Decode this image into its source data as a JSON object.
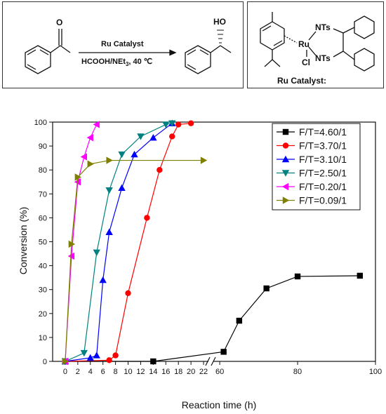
{
  "scheme": {
    "reagent_above": "Ru Catalyst",
    "reagent_below_prefix": "HCOOH/NEt",
    "reagent_below_sub": "3",
    "reagent_below_suffix": ", 40 ℃",
    "reactant_label": "O",
    "product_label": "HO",
    "catalyst_caption": "Ru Catalyst:",
    "catalyst_atoms": {
      "metal": "Ru",
      "ligand_1": "NTs",
      "ligand_2": "NTs",
      "halide": "Cl"
    }
  },
  "chart_data": {
    "type": "line",
    "xlabel": "Reaction time (h)",
    "ylabel": "Conversion (%)",
    "ylim": [
      0,
      100
    ],
    "yticks": [
      0,
      10,
      20,
      30,
      40,
      50,
      60,
      70,
      80,
      90,
      100
    ],
    "x_axis_break": {
      "segment_1": [
        -2,
        23
      ],
      "segment_2": [
        58,
        100
      ]
    },
    "xticks_segment_1": [
      0,
      2,
      4,
      6,
      8,
      10,
      12,
      14,
      16,
      18,
      20,
      22
    ],
    "xticks_segment_2": [
      60,
      80,
      100
    ],
    "grid": false,
    "legend_position": "top-right",
    "series": [
      {
        "name": "F/T=4.60/1",
        "color": "#000000",
        "marker": "square",
        "x": [
          0,
          14,
          61,
          65,
          72,
          80,
          96
        ],
        "y": [
          0,
          0,
          4,
          17,
          30.5,
          35.5,
          35.8
        ]
      },
      {
        "name": "F/T=3.70/1",
        "color": "#ff0000",
        "marker": "circle",
        "x": [
          0,
          7,
          8,
          10,
          13,
          15,
          17,
          18,
          20
        ],
        "y": [
          0,
          0.5,
          2.5,
          28.5,
          60,
          80,
          94,
          99,
          99.5
        ]
      },
      {
        "name": "F/T=3.10/1",
        "color": "#0000ff",
        "marker": "triangle-up",
        "x": [
          0,
          4,
          5,
          6,
          7,
          9,
          11,
          14,
          17
        ],
        "y": [
          0,
          1.5,
          2.5,
          34,
          54,
          72.5,
          86.5,
          93.5,
          99.5
        ]
      },
      {
        "name": "F/T=2.50/1",
        "color": "#008080",
        "marker": "triangle-down",
        "x": [
          0,
          3,
          5,
          7,
          9,
          12,
          16,
          17
        ],
        "y": [
          0,
          3.5,
          45.5,
          71.5,
          86.5,
          94,
          99,
          99.5
        ]
      },
      {
        "name": "F/T=0.20/1",
        "color": "#ff00ff",
        "marker": "triangle-left",
        "x": [
          0,
          1,
          2,
          3,
          4,
          5
        ],
        "y": [
          0,
          44,
          75,
          85.5,
          93.5,
          99
        ]
      },
      {
        "name": "F/T=0.09/1",
        "color": "#808000",
        "marker": "triangle-right",
        "x": [
          0,
          1,
          2,
          4,
          7,
          22
        ],
        "y": [
          0,
          49,
          77,
          82.5,
          84,
          84
        ]
      }
    ]
  }
}
